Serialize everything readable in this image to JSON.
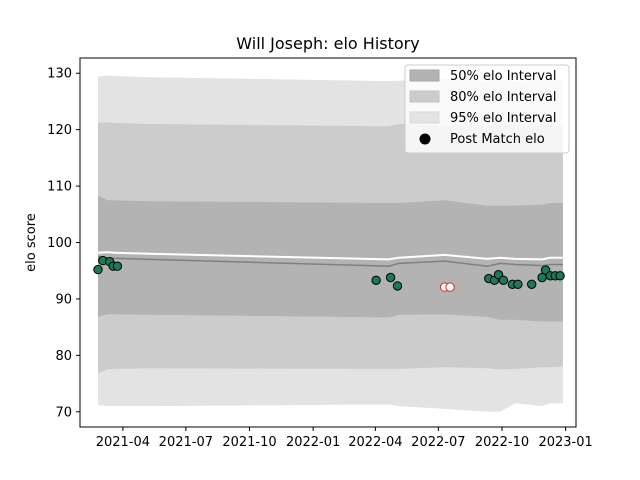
{
  "chart_data": {
    "type": "line",
    "title": "Will Joseph: elo History",
    "xlabel": "",
    "ylabel": "elo score",
    "xlim": [
      "2021-01-29",
      "2023-01-16"
    ],
    "ylim": [
      67.3,
      132.7
    ],
    "x_ticks": [
      "2021-04",
      "2021-07",
      "2021-10",
      "2022-01",
      "2022-04",
      "2022-07",
      "2022-10",
      "2023-01"
    ],
    "y_ticks": [
      70,
      80,
      90,
      100,
      110,
      120,
      130
    ],
    "grid": false,
    "legend": {
      "position": "upper right",
      "entries": [
        "50% elo Interval",
        "80% elo Interval",
        "95% elo Interval",
        "Post Match elo"
      ]
    },
    "colors": {
      "band_50": "#b3b3b3",
      "band_80": "#cccccc",
      "band_95": "#e3e3e3",
      "mean_line": "#808080",
      "fair_line": "#ffffff",
      "marker_fill": "#1b7a55",
      "marker_edge": "#000000",
      "marker_hollow_edge": "#d62728"
    },
    "bands": {
      "x": [
        "2021-02-24",
        "2021-03-10",
        "2021-03-20",
        "2021-05-10",
        "2022-04-20",
        "2022-05-05",
        "2022-07-10",
        "2022-09-10",
        "2022-09-28",
        "2022-10-20",
        "2022-11-28",
        "2022-12-10",
        "2022-12-28"
      ],
      "p95_low": [
        71.2,
        71.0,
        71.0,
        71.0,
        71.3,
        71.0,
        70.5,
        70.0,
        70.0,
        71.5,
        71.0,
        71.5,
        71.5
      ],
      "p95_high": [
        129.4,
        129.6,
        129.5,
        129.3,
        128.6,
        128.7,
        129.0,
        128.6,
        128.8,
        128.6,
        128.8,
        128.8,
        129.0
      ],
      "p80_low": [
        76.8,
        77.5,
        77.6,
        77.7,
        77.6,
        77.6,
        77.9,
        77.7,
        77.5,
        77.6,
        77.9,
        77.9,
        78.0
      ],
      "p80_high": [
        121.2,
        121.3,
        121.2,
        121.0,
        120.6,
        121.0,
        120.7,
        120.6,
        120.8,
        120.7,
        120.8,
        120.8,
        120.8
      ],
      "p50_low": [
        86.8,
        87.3,
        87.3,
        87.2,
        86.7,
        87.2,
        87.3,
        86.8,
        86.3,
        86.3,
        86.0,
        86.0,
        86.0
      ],
      "p50_high": [
        108.3,
        107.5,
        107.5,
        107.3,
        107.0,
        107.0,
        107.5,
        106.5,
        106.5,
        106.5,
        106.7,
        107.0,
        107.0
      ],
      "mean": [
        97.5,
        97.3,
        97.2,
        97.0,
        95.8,
        96.3,
        96.7,
        95.8,
        96.3,
        96.1,
        95.9,
        96.1,
        96.1
      ],
      "fair": [
        98.2,
        98.3,
        98.2,
        98.0,
        97.0,
        97.3,
        97.8,
        97.1,
        97.3,
        97.1,
        97.0,
        97.3,
        97.3
      ]
    },
    "post_match": {
      "x": [
        "2021-02-24",
        "2021-03-03",
        "2021-03-13",
        "2021-03-18",
        "2021-03-24",
        "2022-04-02",
        "2022-04-23",
        "2022-05-03",
        "2022-09-12",
        "2022-09-20",
        "2022-09-26",
        "2022-10-03",
        "2022-10-16",
        "2022-10-24",
        "2022-11-13",
        "2022-11-28",
        "2022-12-03",
        "2022-12-10",
        "2022-12-17",
        "2022-12-24"
      ],
      "y": [
        95.2,
        96.8,
        96.6,
        95.8,
        95.8,
        93.3,
        93.8,
        92.3,
        93.6,
        93.3,
        94.3,
        93.3,
        92.6,
        92.6,
        92.6,
        93.8,
        95.1,
        94.1,
        94.1,
        94.1
      ]
    },
    "hollow_points": {
      "x": [
        "2022-07-10",
        "2022-07-18"
      ],
      "y": [
        92.1,
        92.1
      ]
    }
  }
}
